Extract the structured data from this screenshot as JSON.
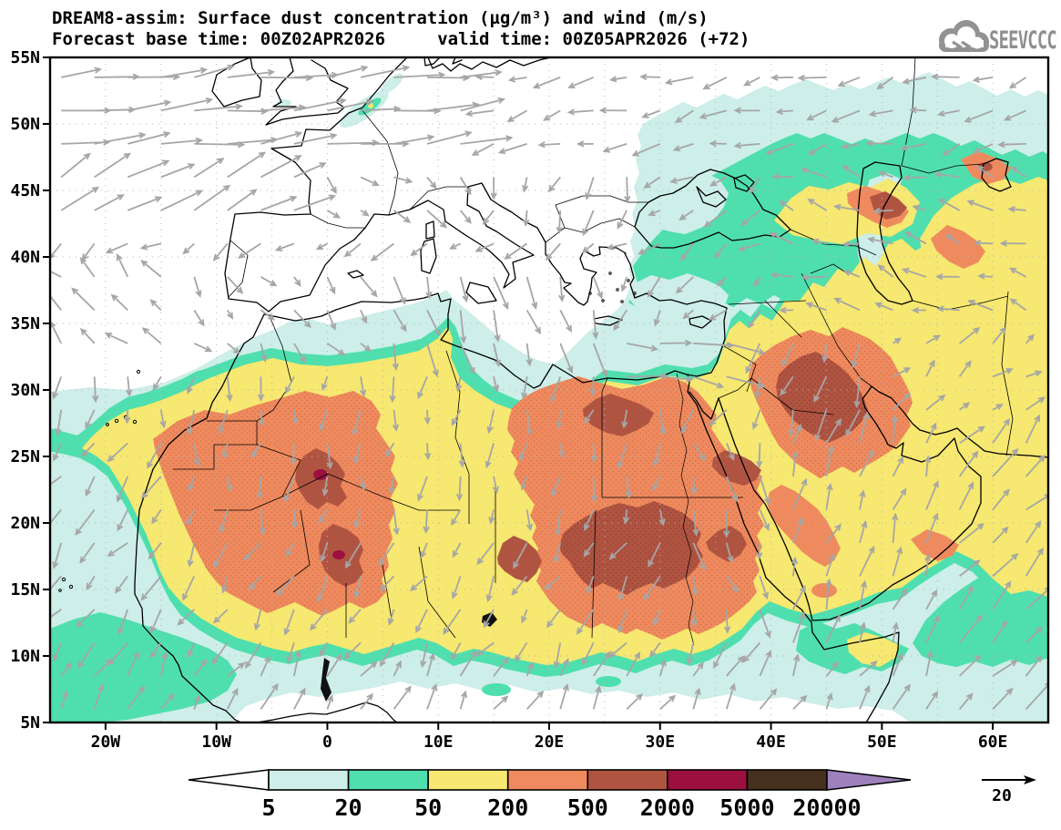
{
  "header": {
    "title_line1": "DREAM8-assim: Surface dust concentration (µg/m³) and wind (m/s)",
    "title_line2": "Forecast base time: 00Z02APR2026     valid time: 00Z05APR2026 (+72)",
    "logo_text": "SEEVCCC"
  },
  "chart_data": {
    "type": "map-contour",
    "model": "DREAM8-assim",
    "variable": "Surface dust concentration (µg/m³) and wind (m/s)",
    "forecast_base_time": "00Z02APR2026",
    "valid_time": "00Z05APR2026",
    "lead_time": "+72",
    "map_extent": {
      "lon_min": -25,
      "lon_max": 65,
      "lat_min": 5,
      "lat_max": 55
    },
    "lat_tick_values": [
      55,
      50,
      45,
      40,
      35,
      30,
      25,
      20,
      15,
      10,
      5
    ],
    "lat_tick_labels": [
      "55N",
      "50N",
      "45N",
      "40N",
      "35N",
      "30N",
      "25N",
      "20N",
      "15N",
      "10N",
      "5N"
    ],
    "lon_tick_values": [
      -20,
      -10,
      0,
      10,
      20,
      30,
      40,
      50,
      60
    ],
    "lon_tick_labels": [
      "20W",
      "10W",
      "0",
      "10E",
      "20E",
      "30E",
      "40E",
      "50E",
      "60E"
    ],
    "graticule_step_deg": 5,
    "legend": {
      "levels": [
        "5",
        "20",
        "50",
        "200",
        "500",
        "2000",
        "5000",
        "20000"
      ],
      "band_colors": [
        "#cdeee9",
        "#4fdfae",
        "#f6e870",
        "#ef8a5e",
        "#b05442",
        "#9c1040",
        "#46301f"
      ],
      "below_color": "#ffffff",
      "above_color": "#9d80bc"
    },
    "wind_reference": {
      "value": "20",
      "units": "m/s"
    },
    "dust_maxima_regions": [
      "southern Algeria / northern Mali (>2000)",
      "Bodele Chad / western Sudan (>2000)",
      "northeastern Libya / northwestern Egypt (>2000)",
      "Iraq / Kuwait / eastern Saudi Arabia (>2000)",
      "Kura-Aras lowland Caucasus (>500)"
    ]
  }
}
